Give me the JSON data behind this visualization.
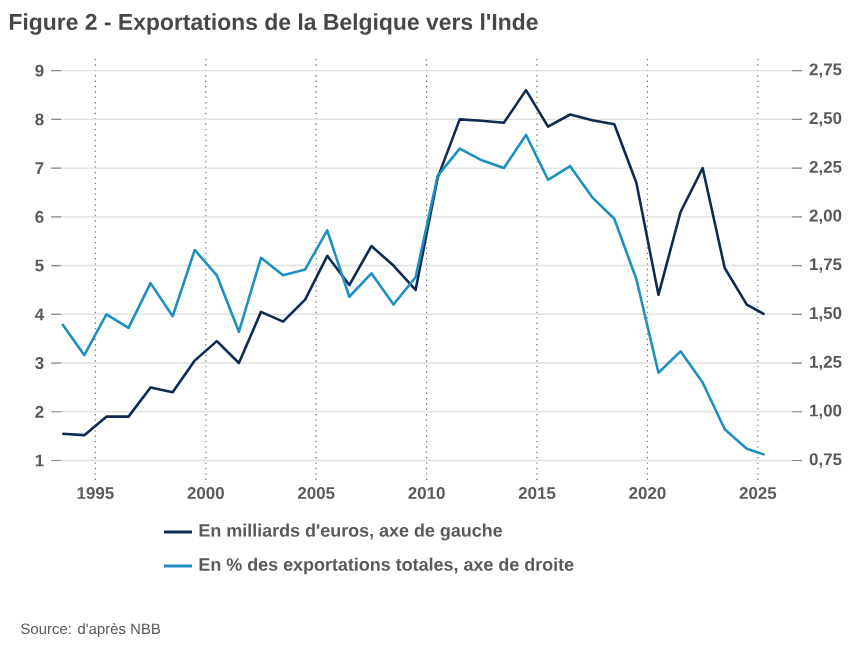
{
  "chart_data": {
    "type": "line",
    "title": "Figure 2 - Exportations de la Belgique vers l'Inde",
    "x": [
      1993.5,
      1994.5,
      1995.5,
      1996.5,
      1997.5,
      1998.5,
      1999.5,
      2000.5,
      2001.5,
      2002.5,
      2003.5,
      2004.5,
      2005.5,
      2006.5,
      2007.5,
      2008.5,
      2009.5,
      2010.5,
      2011.5,
      2012.5,
      2013.5,
      2014.5,
      2015.5,
      2016.5,
      2017.5,
      2018.5,
      2019.5,
      2020.5,
      2021.5,
      2022.5,
      2023.5,
      2024.5,
      2025.3
    ],
    "series": [
      {
        "name": "En milliards d'euros, axe de gauche",
        "color": "#0d2b52",
        "values": [
          1.55,
          1.52,
          1.9,
          1.9,
          2.5,
          2.4,
          3.05,
          3.45,
          3.0,
          4.05,
          3.85,
          4.3,
          5.2,
          4.6,
          5.4,
          5.0,
          4.5,
          6.8,
          8.0,
          7.97,
          7.93,
          8.6,
          7.85,
          8.1,
          7.98,
          7.9,
          6.7,
          4.4,
          6.1,
          7.0,
          4.95,
          4.2,
          4.0
        ]
      },
      {
        "name": "En % des exportations totales, axe de droite",
        "color": "#1d8fc1",
        "axis": "y2",
        "values": [
          1.45,
          1.29,
          1.5,
          1.43,
          1.66,
          1.49,
          1.83,
          1.7,
          1.41,
          1.79,
          1.7,
          1.73,
          1.93,
          1.59,
          1.71,
          1.55,
          1.69,
          2.21,
          2.35,
          2.29,
          2.25,
          2.42,
          2.19,
          2.26,
          2.1,
          1.99,
          1.68,
          1.2,
          1.31,
          1.15,
          0.91,
          0.81,
          0.78
        ]
      }
    ],
    "xlim": [
      1993,
      2027
    ],
    "xticks": [
      1995,
      2000,
      2005,
      2010,
      2015,
      2020,
      2025
    ],
    "ylim": [
      0.6,
      9.3
    ],
    "yticks": [
      1,
      2,
      3,
      4,
      5,
      6,
      7,
      8,
      9
    ],
    "y2lim": [
      0.65,
      2.825
    ],
    "y2ticks": [
      {
        "value": 0.75,
        "label": "0,75"
      },
      {
        "value": 1.0,
        "label": "1,00"
      },
      {
        "value": 1.25,
        "label": "1,25"
      },
      {
        "value": 1.5,
        "label": "1,50"
      },
      {
        "value": 1.75,
        "label": "1,75"
      },
      {
        "value": 2.0,
        "label": "2,00"
      },
      {
        "value": 2.25,
        "label": "2,25"
      },
      {
        "value": 2.5,
        "label": "2,50"
      },
      {
        "value": 2.75,
        "label": "2,75"
      }
    ],
    "grid": true,
    "legend": "bottom",
    "marker": "none",
    "line_style": "solid",
    "annotations": [
      "Source: d'après NBB"
    ]
  }
}
